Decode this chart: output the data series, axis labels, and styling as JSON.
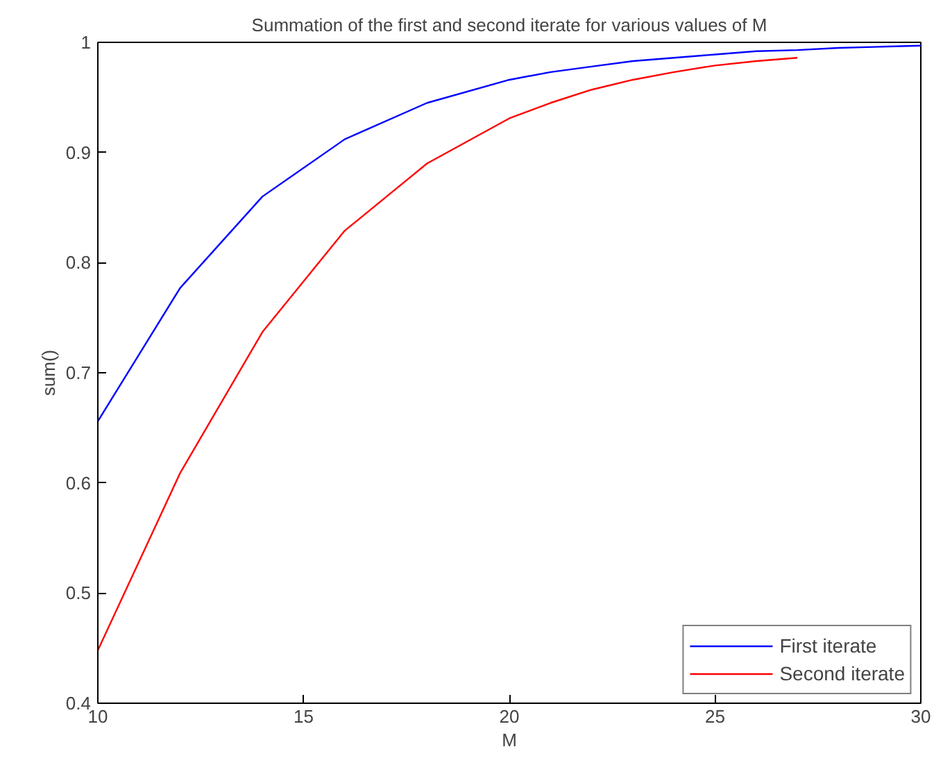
{
  "chart_data": {
    "type": "line",
    "title": "Summation of the first and second iterate for various values of M",
    "xlabel": "M",
    "ylabel": "sum()",
    "x": [
      10,
      12,
      14,
      16,
      18,
      20,
      21,
      22,
      23,
      24,
      25,
      26,
      27,
      28,
      29,
      30
    ],
    "series": [
      {
        "name": "First iterate",
        "color": "#0000ff",
        "values": [
          0.656,
          0.777,
          0.86,
          0.912,
          0.945,
          0.966,
          0.973,
          0.978,
          0.983,
          0.986,
          0.989,
          0.992,
          0.993,
          0.995,
          0.996,
          0.997
        ]
      },
      {
        "name": "Second iterate",
        "color": "#ff0000",
        "values": [
          0.448,
          0.609,
          0.737,
          0.829,
          0.89,
          0.931,
          0.945,
          0.957,
          0.966,
          0.973,
          0.979,
          0.983,
          0.986,
          null,
          null,
          null
        ]
      }
    ],
    "xlim": [
      10,
      30
    ],
    "ylim": [
      0.4,
      1
    ],
    "xticks": [
      10,
      15,
      20,
      25,
      30
    ],
    "yticks": [
      0.4,
      0.5,
      0.6,
      0.7,
      0.8,
      0.9,
      1
    ],
    "grid": false,
    "legend": "bottom right",
    "line_style": "solid"
  }
}
